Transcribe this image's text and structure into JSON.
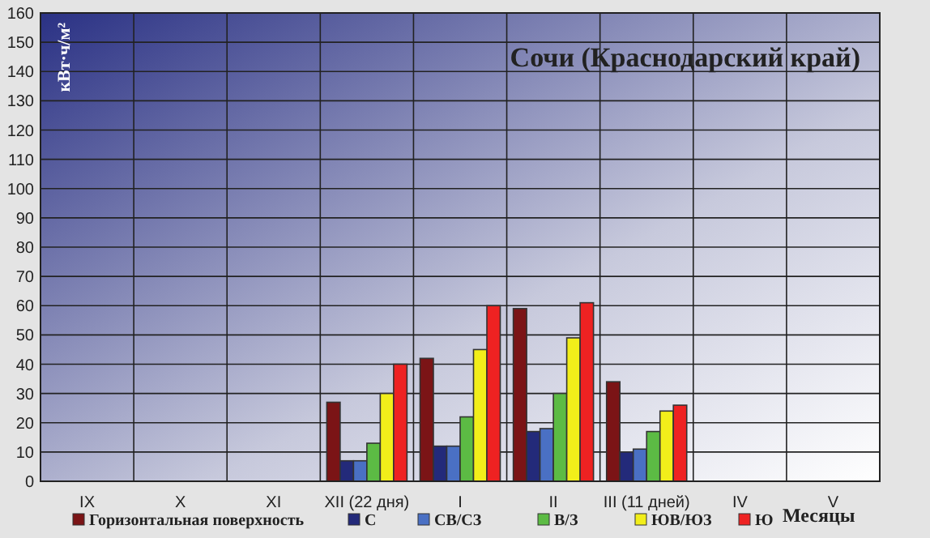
{
  "chart_data": {
    "type": "bar",
    "title": "Сочи (Краснодарский край)",
    "xlabel": "Месяцы",
    "ylabel": "кВт·ч/м²",
    "categories": [
      "IX",
      "X",
      "XI",
      "XII (22 дня)",
      "I",
      "II",
      "III (11 дней)",
      "IV",
      "V"
    ],
    "series": [
      {
        "name": "Горизонтальная поверхность",
        "color": "#7b1416",
        "values": [
          null,
          null,
          null,
          27,
          42,
          59,
          34,
          null,
          null
        ]
      },
      {
        "name": "С",
        "color": "#232a7a",
        "values": [
          null,
          null,
          null,
          7,
          12,
          17,
          10,
          null,
          null
        ]
      },
      {
        "name": "СВ/СЗ",
        "color": "#4a70c4",
        "values": [
          null,
          null,
          null,
          7,
          12,
          18,
          11,
          null,
          null
        ]
      },
      {
        "name": "В/З",
        "color": "#5cbb44",
        "values": [
          null,
          null,
          null,
          13,
          22,
          30,
          17,
          null,
          null
        ]
      },
      {
        "name": "ЮВ/ЮЗ",
        "color": "#f2ee1a",
        "values": [
          null,
          null,
          null,
          30,
          45,
          49,
          24,
          null,
          null
        ]
      },
      {
        "name": "Ю",
        "color": "#ee2222",
        "values": [
          null,
          null,
          null,
          40,
          60,
          61,
          26,
          null,
          null
        ]
      }
    ],
    "ylim": [
      0,
      160
    ],
    "yticks": [
      0,
      10,
      20,
      30,
      40,
      50,
      60,
      70,
      80,
      90,
      100,
      110,
      120,
      130,
      140,
      150,
      160
    ],
    "grid": true,
    "legend": "bottom"
  }
}
